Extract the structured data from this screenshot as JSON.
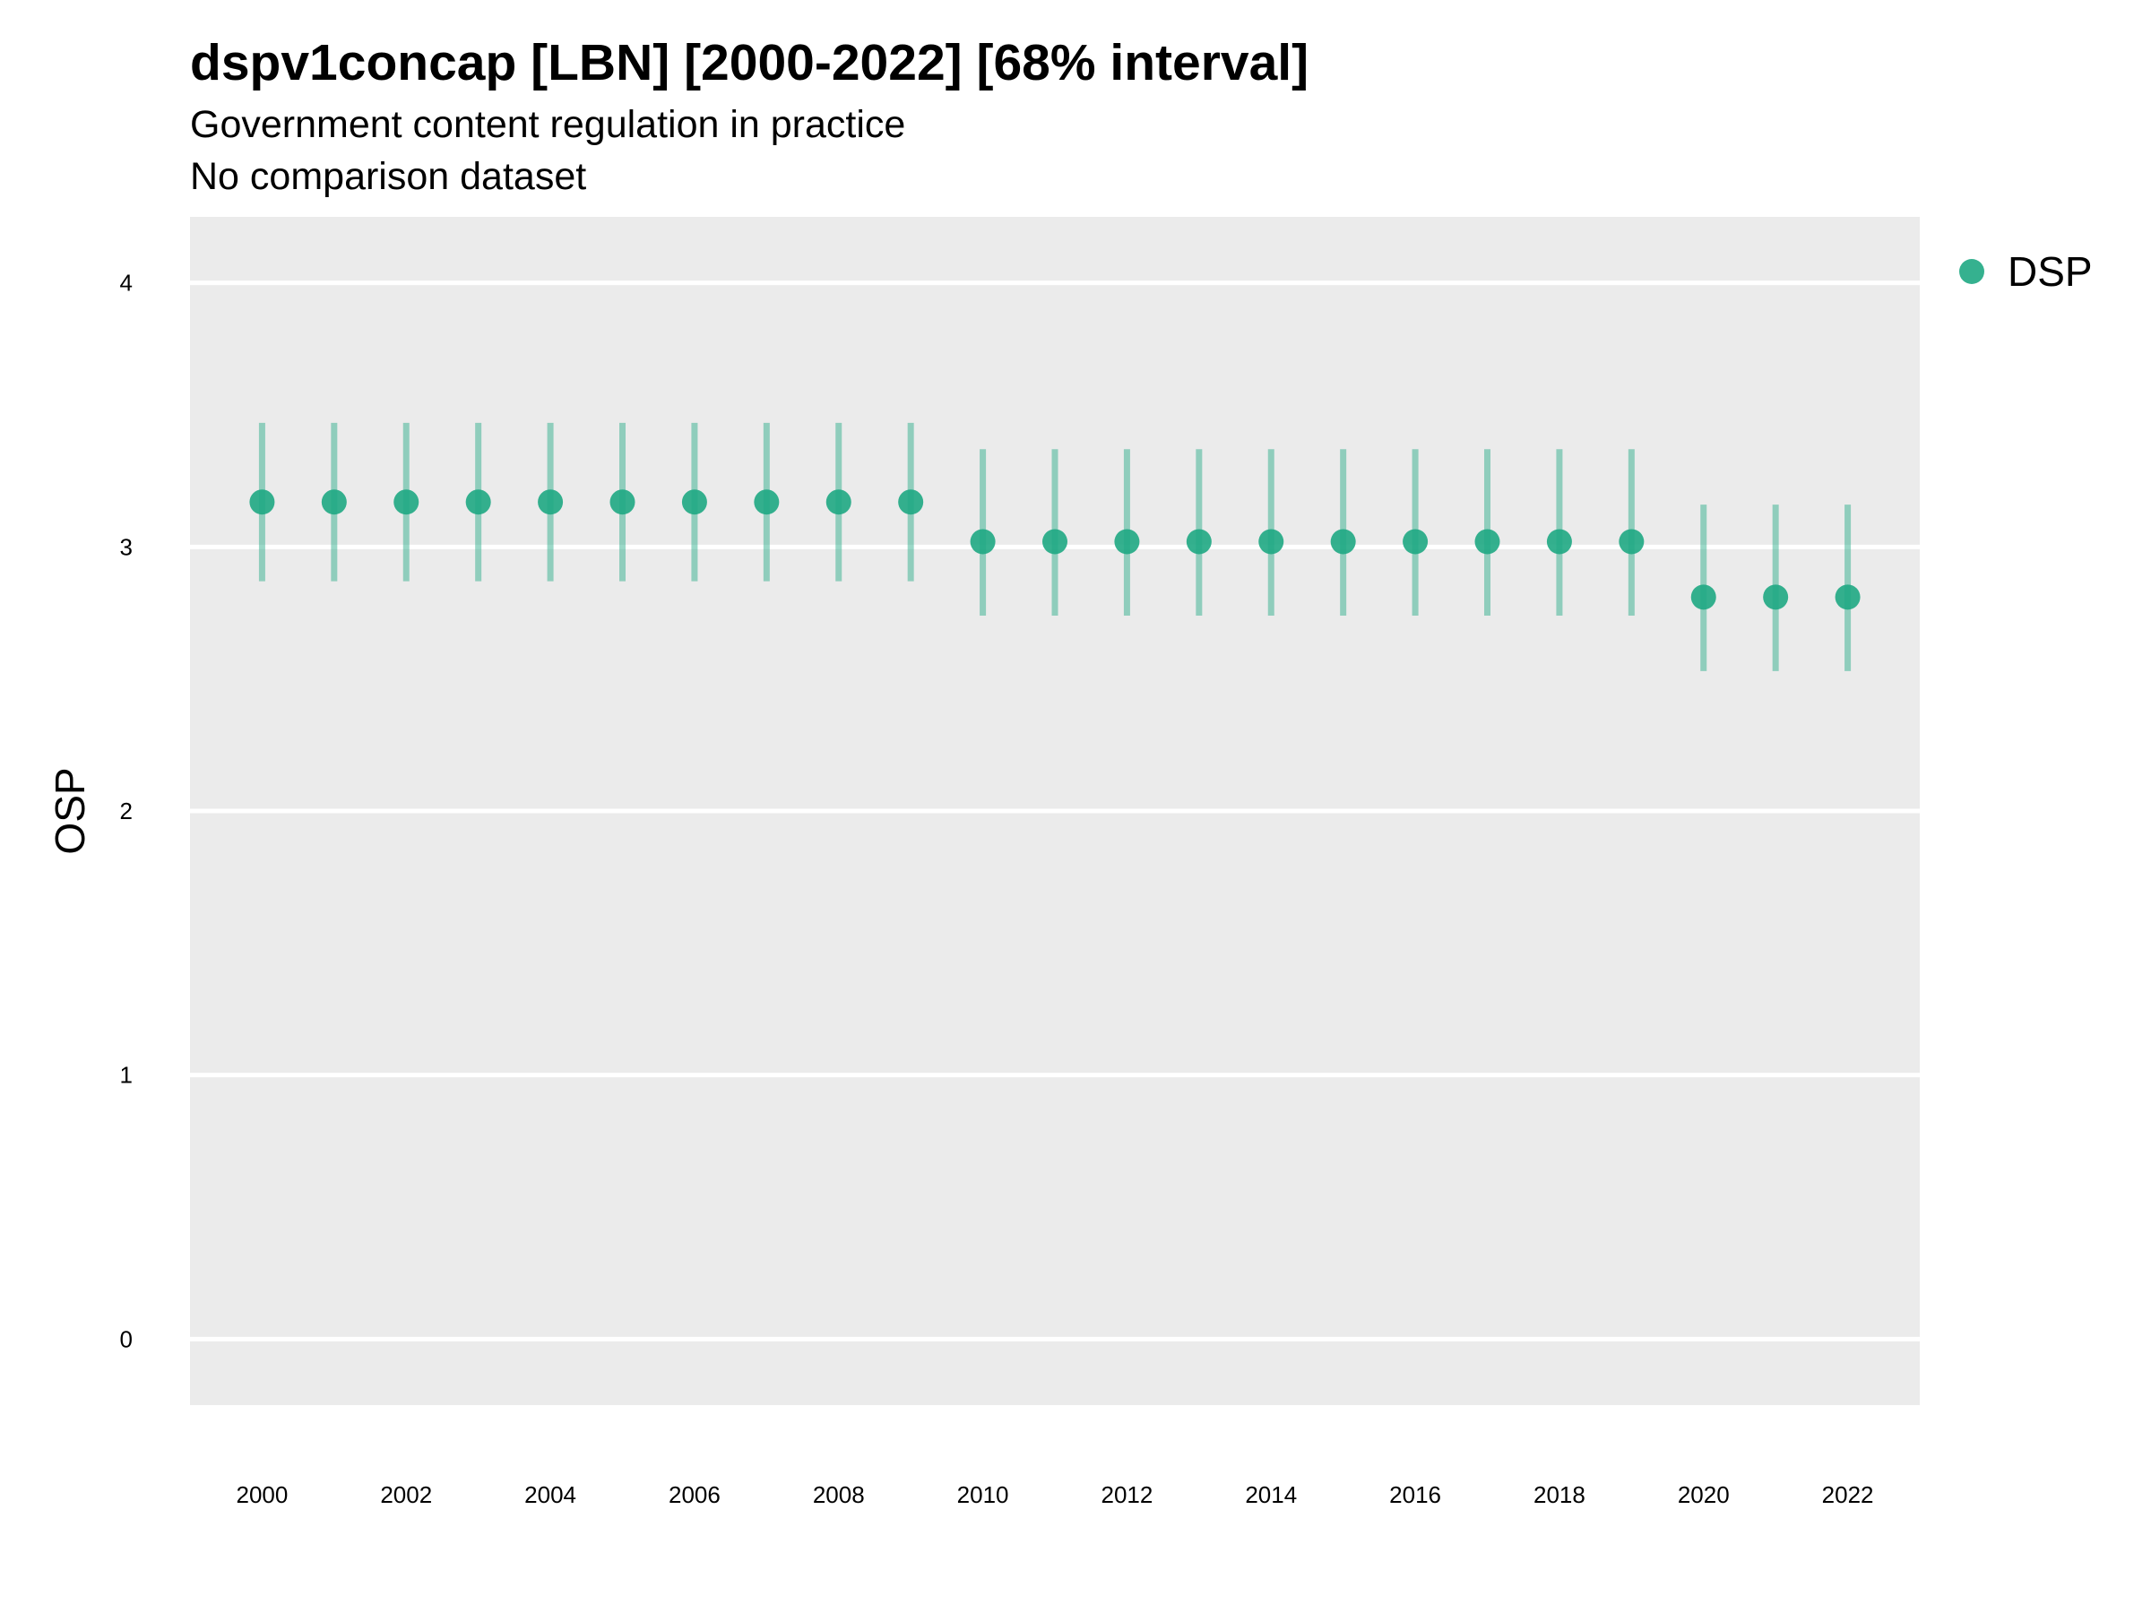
{
  "title": "dspv1concap [LBN] [2000-2022] [68% interval]",
  "subtitle_lines": [
    "Government content regulation in practice",
    "No comparison dataset"
  ],
  "chart_data": {
    "type": "scatter",
    "title": "dspv1concap [LBN] [2000-2022] [68% interval]",
    "subtitle": "Government content regulation in practice\nNo comparison dataset",
    "xlabel": "",
    "ylabel": "OSP",
    "xlim": [
      1999,
      2023
    ],
    "ylim": [
      -0.25,
      4.25
    ],
    "x_ticks": [
      2000,
      2002,
      2004,
      2006,
      2008,
      2010,
      2012,
      2014,
      2016,
      2018,
      2020,
      2022
    ],
    "y_ticks": [
      0,
      1,
      2,
      3,
      4
    ],
    "grid": "horizontal major lines only",
    "background": "#EBEBEB",
    "legend_position": "top-right",
    "series": [
      {
        "name": "DSP",
        "color": "#1FA983",
        "x": [
          2000,
          2001,
          2002,
          2003,
          2004,
          2005,
          2006,
          2007,
          2008,
          2009,
          2010,
          2011,
          2012,
          2013,
          2014,
          2015,
          2016,
          2017,
          2018,
          2019,
          2020,
          2021,
          2022
        ],
        "y": [
          3.17,
          3.17,
          3.17,
          3.17,
          3.17,
          3.17,
          3.17,
          3.17,
          3.17,
          3.17,
          3.02,
          3.02,
          3.02,
          3.02,
          3.02,
          3.02,
          3.02,
          3.02,
          3.02,
          3.02,
          2.81,
          2.81,
          2.81
        ],
        "lower": [
          2.87,
          2.87,
          2.87,
          2.87,
          2.87,
          2.87,
          2.87,
          2.87,
          2.87,
          2.87,
          2.74,
          2.74,
          2.74,
          2.74,
          2.74,
          2.74,
          2.74,
          2.74,
          2.74,
          2.74,
          2.53,
          2.53,
          2.53
        ],
        "upper": [
          3.47,
          3.47,
          3.47,
          3.47,
          3.47,
          3.47,
          3.47,
          3.47,
          3.47,
          3.47,
          3.37,
          3.37,
          3.37,
          3.37,
          3.37,
          3.37,
          3.37,
          3.37,
          3.37,
          3.37,
          3.16,
          3.16,
          3.16
        ]
      }
    ]
  }
}
